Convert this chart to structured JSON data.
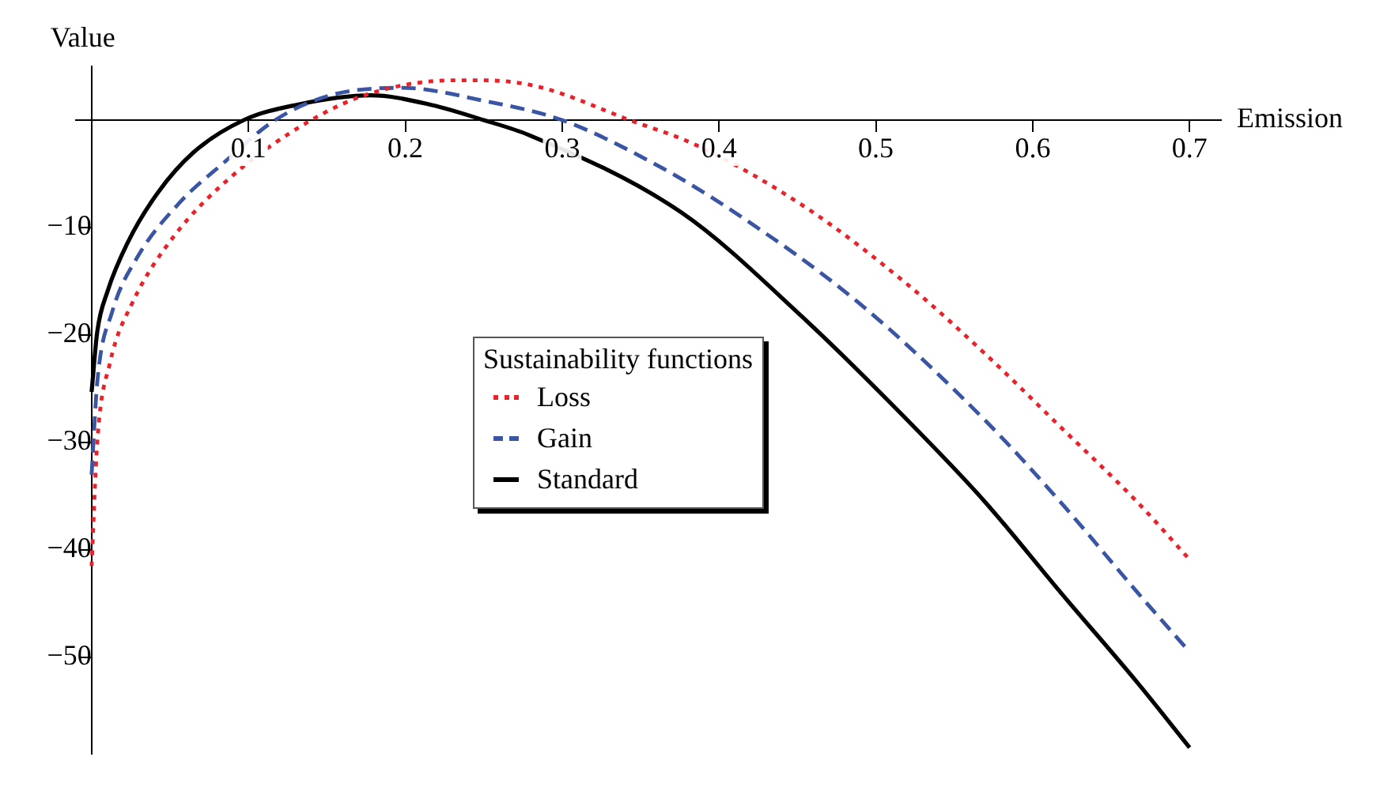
{
  "chart_data": {
    "type": "line",
    "xlabel": "Emission",
    "ylabel": "Value",
    "legend_title": "Sustainability functions",
    "legend": "center",
    "grid": false,
    "xlim": [
      -0.01,
      0.72
    ],
    "ylim": [
      -59,
      5
    ],
    "xticks": [
      0.1,
      0.2,
      0.3,
      0.4,
      0.5,
      0.6,
      0.7
    ],
    "yticks": [
      -50,
      -40,
      -30,
      -20,
      -10
    ],
    "series": [
      {
        "name": "Loss",
        "color": "#e8212a",
        "line_style": "dotted",
        "x": [
          0,
          0.0036,
          0.0117,
          0.026,
          0.052,
          0.088,
          0.14,
          0.178,
          0.23,
          0.25,
          0.285,
          0.343,
          0.385,
          0.456,
          0.521,
          0.57,
          0.618,
          0.667,
          0.7
        ],
        "values": [
          -41.5,
          -30,
          -22.6,
          -17,
          -10.9,
          -5.4,
          0,
          2.5,
          3.7,
          3.7,
          3.1,
          0,
          -2.3,
          -8.2,
          -15.4,
          -21.8,
          -28.6,
          -35.6,
          -40.9
        ]
      },
      {
        "name": "Gain",
        "color": "#3a55a4",
        "line_style": "dashed",
        "x": [
          0,
          0.0036,
          0.013,
          0.029,
          0.056,
          0.084,
          0.117,
          0.152,
          0.198,
          0.25,
          0.3,
          0.358,
          0.408,
          0.489,
          0.57,
          0.618,
          0.667,
          0.7
        ],
        "values": [
          -33,
          -24.4,
          -17.9,
          -12.8,
          -7.7,
          -4,
          0,
          2.3,
          3,
          1.8,
          0,
          -4,
          -8.4,
          -17,
          -28,
          -35.6,
          -44,
          -49.5
        ]
      },
      {
        "name": "Standard",
        "color": "#000000",
        "line_style": "solid",
        "x": [
          0,
          0.0036,
          0.01,
          0.023,
          0.042,
          0.065,
          0.097,
          0.13,
          0.178,
          0.217,
          0.25,
          0.279,
          0.376,
          0.453,
          0.528,
          0.57,
          0.618,
          0.667,
          0.7
        ],
        "values": [
          -25.3,
          -19.7,
          -16,
          -11.4,
          -6.8,
          -3,
          0,
          1.4,
          2.3,
          1.4,
          0,
          -1.4,
          -8.6,
          -18.3,
          -29.1,
          -35.6,
          -44,
          -52.4,
          -58.4
        ]
      }
    ]
  }
}
